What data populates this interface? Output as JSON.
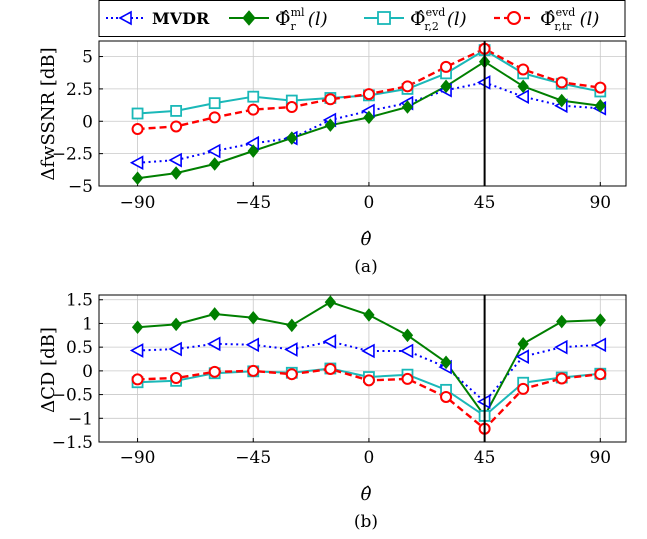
{
  "legend": {
    "entries": [
      {
        "label_main": "MVDR",
        "label_sup": "",
        "label_sub": "",
        "label_arg": ""
      },
      {
        "label_main": "Φ̂",
        "label_sup": "ml",
        "label_sub": "r",
        "label_arg": "(l)"
      },
      {
        "label_main": "Φ̂",
        "label_sup": "evd",
        "label_sub": "r,2",
        "label_arg": "(l)"
      },
      {
        "label_main": "Φ̂",
        "label_sup": "evd",
        "label_sub": "r,tr",
        "label_arg": "(l)"
      }
    ]
  },
  "chart_data": [
    {
      "type": "line",
      "subcaption": "(a)",
      "xlabel": "θ̂",
      "ylabel": "ΔfwSSNR [dB]",
      "xlim": [
        -105,
        100
      ],
      "ylim": [
        -5,
        6.2
      ],
      "xticks": [
        -90,
        -45,
        0,
        45,
        90
      ],
      "xtick_labels": [
        "−90",
        "−45",
        "0",
        "45",
        "90"
      ],
      "yticks": [
        -5,
        -2.5,
        0,
        2.5,
        5
      ],
      "ytick_labels": [
        "−5",
        "−2.5",
        "0",
        "2.5",
        "5"
      ],
      "grid": true,
      "vline_x": 45,
      "x": [
        -90,
        -75,
        -60,
        -45,
        -30,
        -15,
        0,
        15,
        30,
        45,
        60,
        75,
        90
      ],
      "series": [
        {
          "name": "MVDR",
          "color": "#0000ff",
          "dash": "dotted",
          "marker": "triangle-left",
          "values": [
            -3.2,
            -3.0,
            -2.3,
            -1.7,
            -1.3,
            0.1,
            0.8,
            1.4,
            2.4,
            3.0,
            1.9,
            1.2,
            1.0
          ]
        },
        {
          "name": "ml",
          "color": "#007f00",
          "dash": "solid",
          "marker": "diamond",
          "values": [
            -4.4,
            -4.0,
            -3.3,
            -2.3,
            -1.3,
            -0.3,
            0.3,
            1.1,
            2.7,
            4.6,
            2.7,
            1.6,
            1.2
          ]
        },
        {
          "name": "evd r,2",
          "color": "#1ab8b8",
          "dash": "solid",
          "marker": "square",
          "values": [
            0.6,
            0.8,
            1.4,
            1.9,
            1.6,
            1.8,
            2.0,
            2.5,
            3.7,
            5.5,
            3.7,
            2.9,
            2.3
          ]
        },
        {
          "name": "evd r,tr",
          "color": "#ff0000",
          "dash": "dashed",
          "marker": "circle",
          "values": [
            -0.6,
            -0.4,
            0.3,
            0.9,
            1.1,
            1.7,
            2.1,
            2.7,
            4.2,
            5.6,
            4.0,
            3.0,
            2.6
          ]
        }
      ]
    },
    {
      "type": "line",
      "subcaption": "(b)",
      "xlabel": "θ̂",
      "ylabel": "ΔCD [dB]",
      "xlim": [
        -105,
        100
      ],
      "ylim": [
        -1.5,
        1.6
      ],
      "xticks": [
        -90,
        -45,
        0,
        45,
        90
      ],
      "xtick_labels": [
        "−90",
        "−45",
        "0",
        "45",
        "90"
      ],
      "yticks": [
        -1.5,
        -1,
        -0.5,
        0,
        0.5,
        1,
        1.5
      ],
      "ytick_labels": [
        "−1.5",
        "−1",
        "−0.5",
        "0",
        "0.5",
        "1",
        "1.5"
      ],
      "grid": true,
      "vline_x": 45,
      "x": [
        -90,
        -75,
        -60,
        -45,
        -30,
        -15,
        0,
        15,
        30,
        45,
        60,
        75,
        90
      ],
      "series": [
        {
          "name": "MVDR",
          "color": "#0000ff",
          "dash": "dotted",
          "marker": "triangle-left",
          "values": [
            0.43,
            0.46,
            0.57,
            0.55,
            0.45,
            0.62,
            0.42,
            0.42,
            0.08,
            -0.65,
            0.3,
            0.5,
            0.55
          ]
        },
        {
          "name": "ml",
          "color": "#007f00",
          "dash": "solid",
          "marker": "diamond",
          "values": [
            0.92,
            0.98,
            1.2,
            1.12,
            0.96,
            1.45,
            1.18,
            0.75,
            0.18,
            -0.95,
            0.57,
            1.04,
            1.07
          ]
        },
        {
          "name": "evd r,2",
          "color": "#1ab8b8",
          "dash": "solid",
          "marker": "square",
          "values": [
            -0.24,
            -0.21,
            -0.05,
            -0.01,
            -0.04,
            0.05,
            -0.13,
            -0.08,
            -0.4,
            -0.95,
            -0.25,
            -0.14,
            -0.06
          ]
        },
        {
          "name": "evd r,tr",
          "color": "#ff0000",
          "dash": "dashed",
          "marker": "circle",
          "values": [
            -0.18,
            -0.15,
            -0.02,
            0.0,
            -0.07,
            0.04,
            -0.2,
            -0.17,
            -0.55,
            -1.22,
            -0.38,
            -0.16,
            -0.07
          ]
        }
      ]
    }
  ]
}
